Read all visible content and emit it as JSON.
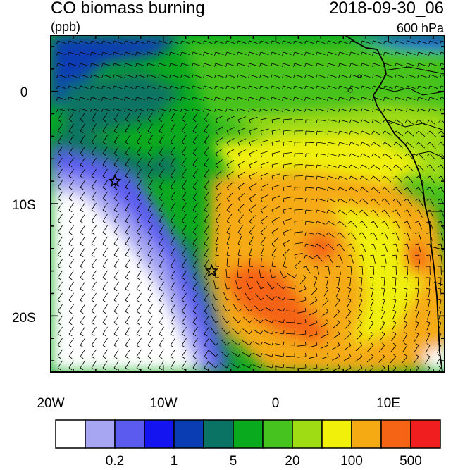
{
  "header": {
    "title": "CO biomass burning",
    "units": "(ppb)",
    "datetime": "2018-09-30_06",
    "level": "600 hPa"
  },
  "axes": {
    "lon_labels": [
      "20W",
      "10W",
      "0",
      "10E"
    ],
    "lat_labels": [
      "0",
      "10S",
      "20S"
    ]
  },
  "colorbar": {
    "colors": [
      "#ffffff",
      "#a6a6f2",
      "#5b5bf0",
      "#1414f0",
      "#0a3cb4",
      "#0a7364",
      "#0aaa1e",
      "#46c31e",
      "#a0dc14",
      "#f0f00a",
      "#f5aa14",
      "#f56414",
      "#f01e1e"
    ],
    "tick_labels": [
      "0.2",
      "1",
      "5",
      "20",
      "100",
      "500"
    ]
  },
  "markers": [
    {
      "name": "star-marker-north",
      "lon": -14.3,
      "lat": -8.0
    },
    {
      "name": "star-marker-south",
      "lon": -5.7,
      "lat": -16.0
    }
  ]
}
